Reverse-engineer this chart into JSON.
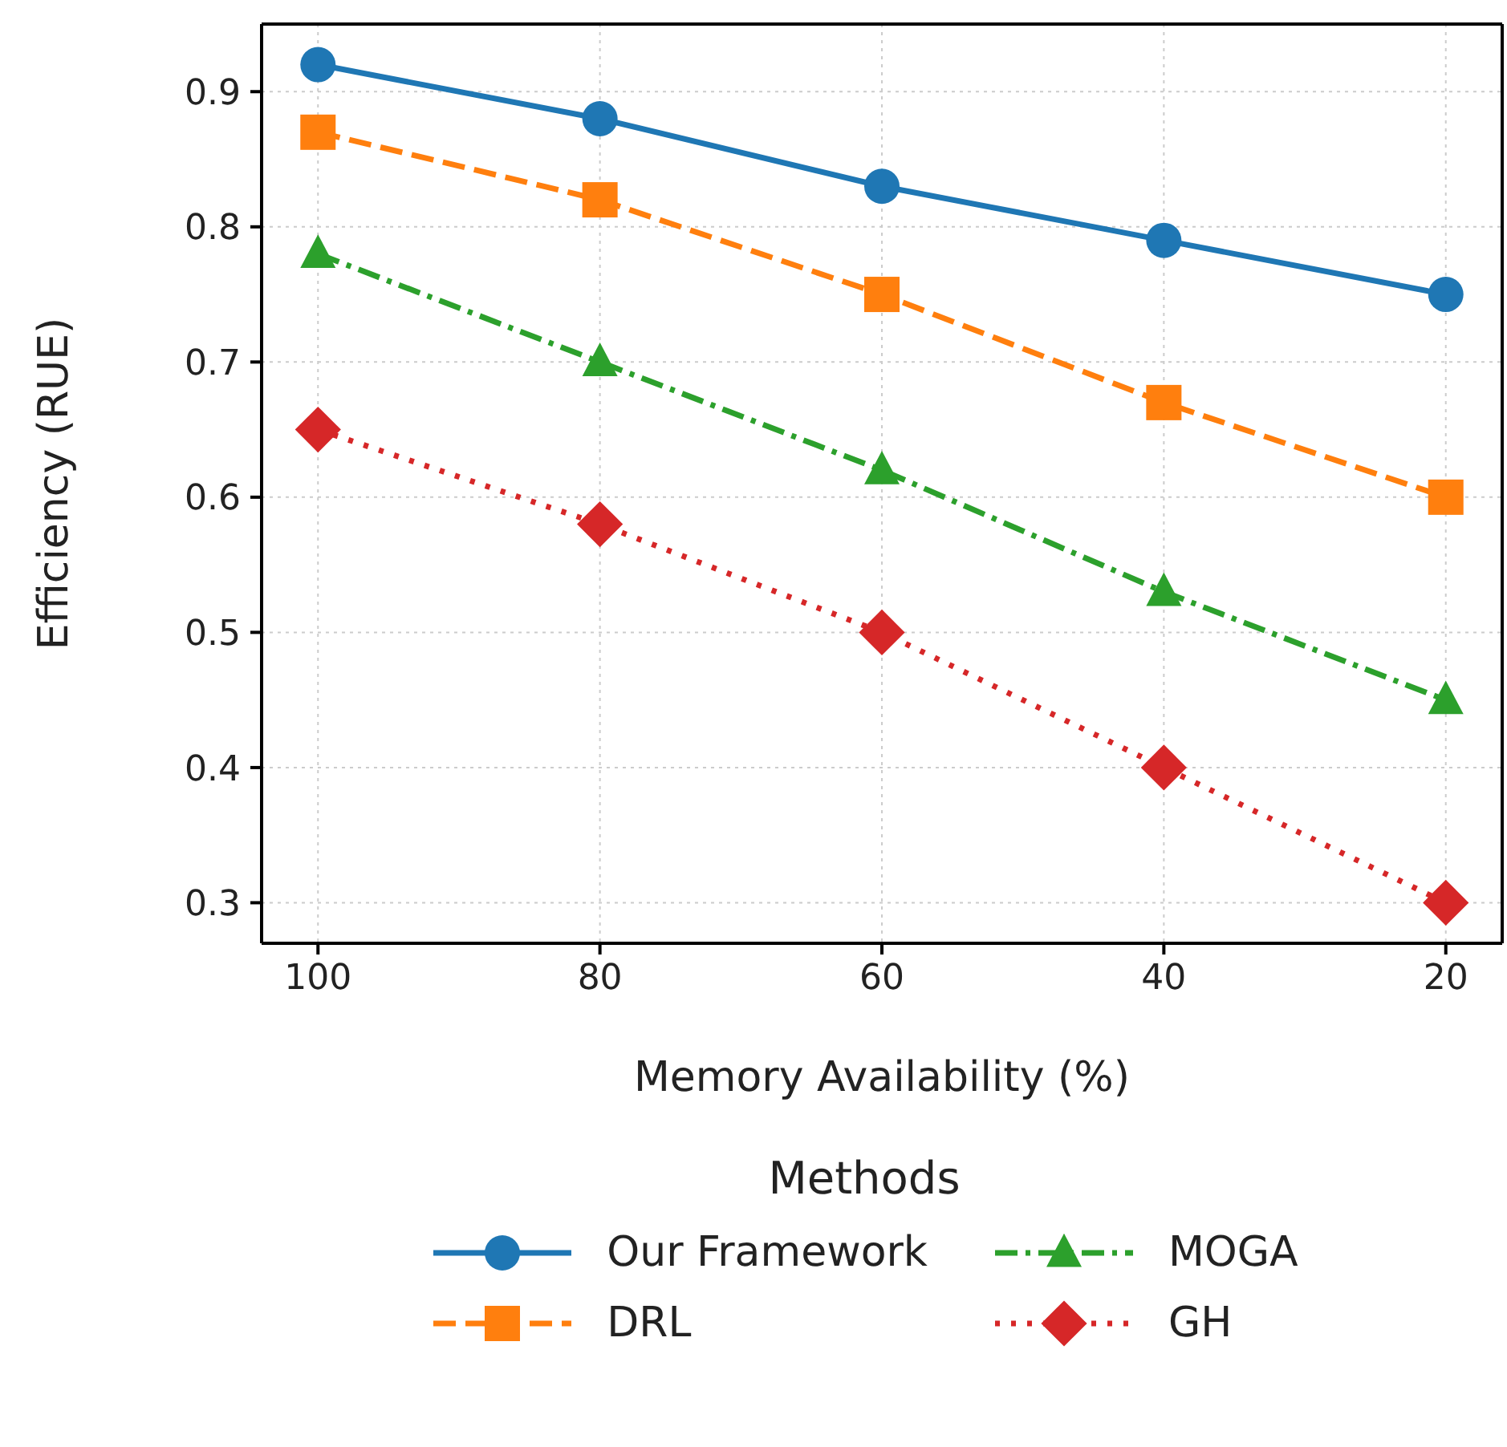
{
  "chart_data": {
    "type": "line",
    "xlabel": "Memory Availability (%)",
    "ylabel": "Efficiency (RUE)",
    "legend_title": "Methods",
    "x": [
      100,
      80,
      60,
      40,
      20
    ],
    "xlim": [
      104,
      16
    ],
    "xticks": [
      100,
      80,
      60,
      40,
      20
    ],
    "ylim": [
      0.27,
      0.95
    ],
    "yticks": [
      0.3,
      0.4,
      0.5,
      0.6,
      0.7,
      0.8,
      0.9
    ],
    "grid": true,
    "legend": "bottom",
    "series": [
      {
        "name": "Our Framework",
        "color": "#1f77b4",
        "marker": "circle",
        "line_style": "solid",
        "values": [
          0.92,
          0.88,
          0.83,
          0.79,
          0.75
        ]
      },
      {
        "name": "DRL",
        "color": "#ff7f0e",
        "marker": "square",
        "line_style": "dashed",
        "values": [
          0.87,
          0.82,
          0.75,
          0.67,
          0.6
        ]
      },
      {
        "name": "MOGA",
        "color": "#2ca02c",
        "marker": "triangle",
        "line_style": "dashdot",
        "values": [
          0.78,
          0.7,
          0.62,
          0.53,
          0.45
        ]
      },
      {
        "name": "GH",
        "color": "#d62728",
        "marker": "diamond",
        "line_style": "dotted",
        "values": [
          0.65,
          0.58,
          0.5,
          0.4,
          0.3
        ]
      }
    ]
  }
}
